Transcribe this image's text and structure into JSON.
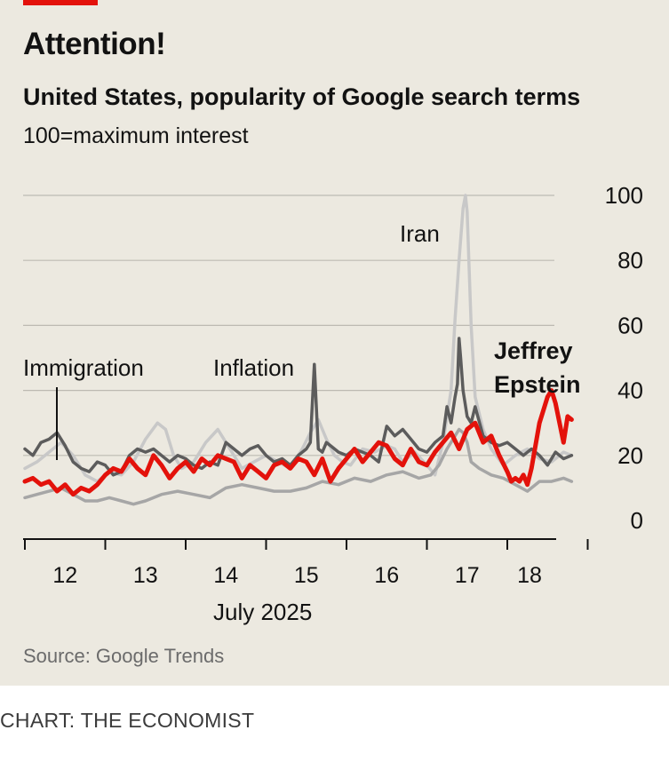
{
  "header": {
    "title": "Attention!",
    "subtitle": "United States, popularity of Google search terms",
    "unit_note": "100=maximum interest"
  },
  "footer": {
    "source": "Source: Google Trends",
    "credit": "CHART: THE ECONOMIST"
  },
  "colors": {
    "background": "#ece9e0",
    "accent_red": "#e3120b",
    "jeffrey_epstein": "#e3120b",
    "immigration": "#5c5c5c",
    "inflation": "#a6a6a6",
    "iran": "#c8c8c8",
    "grid": "#bdbab2"
  },
  "chart_data": {
    "type": "line",
    "title": "United States, popularity of Google search terms",
    "subtitle": "100=maximum interest",
    "x_axis_label": "July 2025",
    "x_tick_labels": [
      "12",
      "13",
      "14",
      "15",
      "16",
      "17",
      "18"
    ],
    "x_range": [
      11.5,
      18.35
    ],
    "y_ticks": [
      0,
      20,
      40,
      60,
      80,
      100
    ],
    "ylim": [
      0,
      100
    ],
    "y_axis_side": "right",
    "grid": true,
    "legend": "direct labels",
    "series": [
      {
        "name": "Iran",
        "color": "#c8c8c8",
        "x": [
          11.5,
          11.65,
          11.8,
          11.95,
          12.1,
          12.25,
          12.4,
          12.55,
          12.7,
          12.85,
          13.0,
          13.15,
          13.25,
          13.35,
          13.45,
          13.6,
          13.75,
          13.9,
          14.05,
          14.2,
          14.35,
          14.5,
          14.65,
          14.8,
          14.95,
          15.05,
          15.15,
          15.25,
          15.35,
          15.45,
          15.55,
          15.7,
          15.85,
          16.0,
          16.1,
          16.2,
          16.35,
          16.5,
          16.6,
          16.7,
          16.8,
          16.85,
          16.9,
          16.95,
          16.98,
          17.0,
          17.05,
          17.1,
          17.2,
          17.3,
          17.45,
          17.6,
          17.75,
          17.9,
          18.05,
          18.2,
          18.3
        ],
        "values": [
          16,
          18,
          21,
          24,
          20,
          14,
          12,
          15,
          14,
          18,
          25,
          30,
          28,
          20,
          16,
          18,
          24,
          28,
          22,
          16,
          18,
          20,
          18,
          16,
          22,
          27,
          31,
          25,
          20,
          18,
          17,
          22,
          21,
          23,
          22,
          18,
          21,
          17,
          14,
          24,
          40,
          62,
          80,
          96,
          100,
          95,
          60,
          38,
          28,
          22,
          17,
          20,
          22,
          19,
          18,
          21,
          20
        ]
      },
      {
        "name": "Immigration",
        "color": "#5c5c5c",
        "x": [
          11.5,
          11.6,
          11.7,
          11.8,
          11.9,
          12.0,
          12.1,
          12.2,
          12.3,
          12.4,
          12.5,
          12.6,
          12.7,
          12.8,
          12.9,
          13.0,
          13.1,
          13.2,
          13.3,
          13.4,
          13.5,
          13.6,
          13.7,
          13.8,
          13.9,
          14.0,
          14.1,
          14.2,
          14.3,
          14.4,
          14.5,
          14.6,
          14.7,
          14.8,
          14.9,
          15.0,
          15.05,
          15.1,
          15.15,
          15.2,
          15.25,
          15.3,
          15.4,
          15.5,
          15.6,
          15.7,
          15.8,
          15.9,
          16.0,
          16.1,
          16.2,
          16.3,
          16.4,
          16.5,
          16.6,
          16.7,
          16.75,
          16.8,
          16.85,
          16.88,
          16.9,
          16.92,
          16.95,
          17.0,
          17.05,
          17.1,
          17.2,
          17.3,
          17.4,
          17.5,
          17.6,
          17.7,
          17.8,
          17.9,
          18.0,
          18.1,
          18.2,
          18.3
        ],
        "values": [
          22,
          20,
          24,
          25,
          27,
          23,
          18,
          16,
          15,
          18,
          17,
          14,
          15,
          20,
          22,
          21,
          22,
          20,
          18,
          20,
          19,
          17,
          16,
          18,
          17,
          24,
          22,
          20,
          22,
          23,
          20,
          18,
          19,
          17,
          20,
          22,
          24,
          48,
          22,
          21,
          24,
          23,
          21,
          20,
          22,
          21,
          20,
          18,
          29,
          26,
          28,
          25,
          22,
          21,
          24,
          26,
          35,
          30,
          38,
          42,
          56,
          50,
          40,
          32,
          30,
          35,
          26,
          24,
          23,
          24,
          22,
          20,
          22,
          20,
          17,
          21,
          19,
          20
        ]
      },
      {
        "name": "Inflation",
        "color": "#a6a6a6",
        "x": [
          11.5,
          11.65,
          11.8,
          11.95,
          12.1,
          12.25,
          12.4,
          12.55,
          12.7,
          12.85,
          13.0,
          13.2,
          13.4,
          13.6,
          13.8,
          14.0,
          14.2,
          14.4,
          14.6,
          14.8,
          15.0,
          15.2,
          15.4,
          15.6,
          15.8,
          16.0,
          16.2,
          16.4,
          16.55,
          16.65,
          16.75,
          16.85,
          16.9,
          16.95,
          17.0,
          17.05,
          17.15,
          17.3,
          17.45,
          17.6,
          17.75,
          17.9,
          18.05,
          18.2,
          18.3
        ],
        "values": [
          7,
          8,
          9,
          10,
          8,
          6,
          6,
          7,
          6,
          5,
          6,
          8,
          9,
          8,
          7,
          10,
          11,
          10,
          9,
          9,
          10,
          12,
          11,
          13,
          12,
          14,
          15,
          13,
          14,
          17,
          22,
          26,
          28,
          27,
          24,
          18,
          16,
          14,
          13,
          11,
          9,
          12,
          12,
          13,
          12
        ]
      },
      {
        "name": "Jeffrey Epstein",
        "color": "#e3120b",
        "x": [
          11.5,
          11.6,
          11.7,
          11.8,
          11.9,
          12.0,
          12.1,
          12.2,
          12.3,
          12.4,
          12.5,
          12.6,
          12.7,
          12.8,
          12.9,
          13.0,
          13.1,
          13.2,
          13.3,
          13.4,
          13.5,
          13.6,
          13.7,
          13.8,
          13.9,
          14.0,
          14.1,
          14.2,
          14.3,
          14.4,
          14.5,
          14.6,
          14.7,
          14.8,
          14.9,
          15.0,
          15.1,
          15.2,
          15.3,
          15.4,
          15.5,
          15.6,
          15.7,
          15.8,
          15.9,
          16.0,
          16.1,
          16.2,
          16.3,
          16.4,
          16.5,
          16.6,
          16.7,
          16.8,
          16.9,
          17.0,
          17.1,
          17.2,
          17.3,
          17.4,
          17.5,
          17.55,
          17.6,
          17.65,
          17.7,
          17.75,
          17.8,
          17.9,
          18.0,
          18.05,
          18.1,
          18.15,
          18.2,
          18.25,
          18.3
        ],
        "values": [
          12,
          13,
          11,
          12,
          9,
          11,
          8,
          10,
          9,
          11,
          14,
          16,
          15,
          19,
          16,
          14,
          20,
          17,
          13,
          16,
          18,
          15,
          19,
          17,
          20,
          19,
          18,
          13,
          17,
          15,
          13,
          17,
          18,
          16,
          19,
          18,
          14,
          19,
          12,
          16,
          19,
          22,
          18,
          21,
          24,
          23,
          19,
          17,
          22,
          18,
          17,
          21,
          24,
          27,
          22,
          28,
          30,
          24,
          26,
          20,
          15,
          12,
          13,
          12,
          14,
          11,
          16,
          30,
          38,
          40,
          36,
          30,
          24,
          32,
          31
        ]
      }
    ],
    "annotations": [
      {
        "text": "Iran",
        "series": "Iran"
      },
      {
        "text": "Immigration",
        "series": "Immigration"
      },
      {
        "text": "Inflation",
        "series": "Inflation"
      },
      {
        "text": "Jeffrey Epstein",
        "lines": [
          "Jeffrey",
          "Epstein"
        ],
        "series": "Jeffrey Epstein"
      }
    ]
  }
}
